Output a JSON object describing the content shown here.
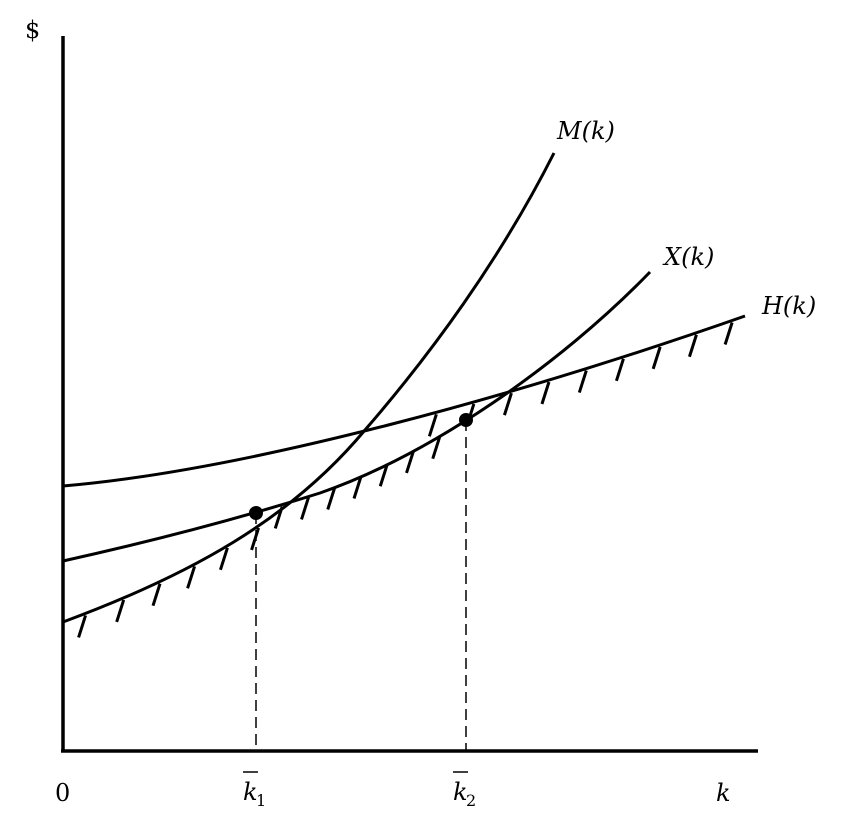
{
  "diagram": {
    "y_axis_label": "$",
    "x_axis_label": "k",
    "origin_label": "0",
    "curves": [
      {
        "id": "M",
        "label": "M(k)"
      },
      {
        "id": "X",
        "label": "X(k)"
      },
      {
        "id": "H",
        "label": "H(k)"
      }
    ],
    "points": [
      {
        "id": "k1",
        "label": "k",
        "subscript": "1"
      },
      {
        "id": "k2",
        "label": "k",
        "subscript": "2"
      }
    ]
  },
  "colors": {
    "ink": "#000000",
    "background": "#ffffff"
  }
}
